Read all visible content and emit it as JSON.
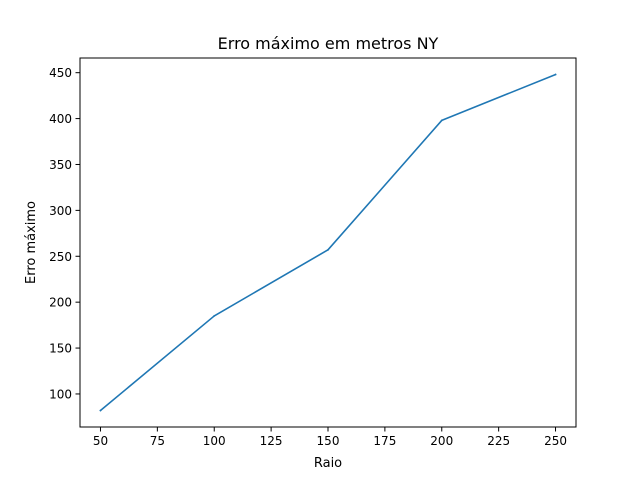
{
  "chart_data": {
    "type": "line",
    "title": "Erro máximo em metros NY",
    "xlabel": "Raio",
    "ylabel": "Erro máximo",
    "x": [
      50,
      100,
      150,
      200,
      250
    ],
    "series": [
      {
        "values": [
          82,
          185,
          257,
          398,
          448
        ],
        "color": "#1f77b4"
      }
    ],
    "xlim": [
      41,
      259
    ],
    "ylim": [
      64,
      466
    ],
    "xticks": [
      50,
      75,
      100,
      125,
      150,
      175,
      200,
      225,
      250
    ],
    "yticks": [
      100,
      150,
      200,
      250,
      300,
      350,
      400,
      450
    ],
    "grid": false,
    "legend": false
  }
}
